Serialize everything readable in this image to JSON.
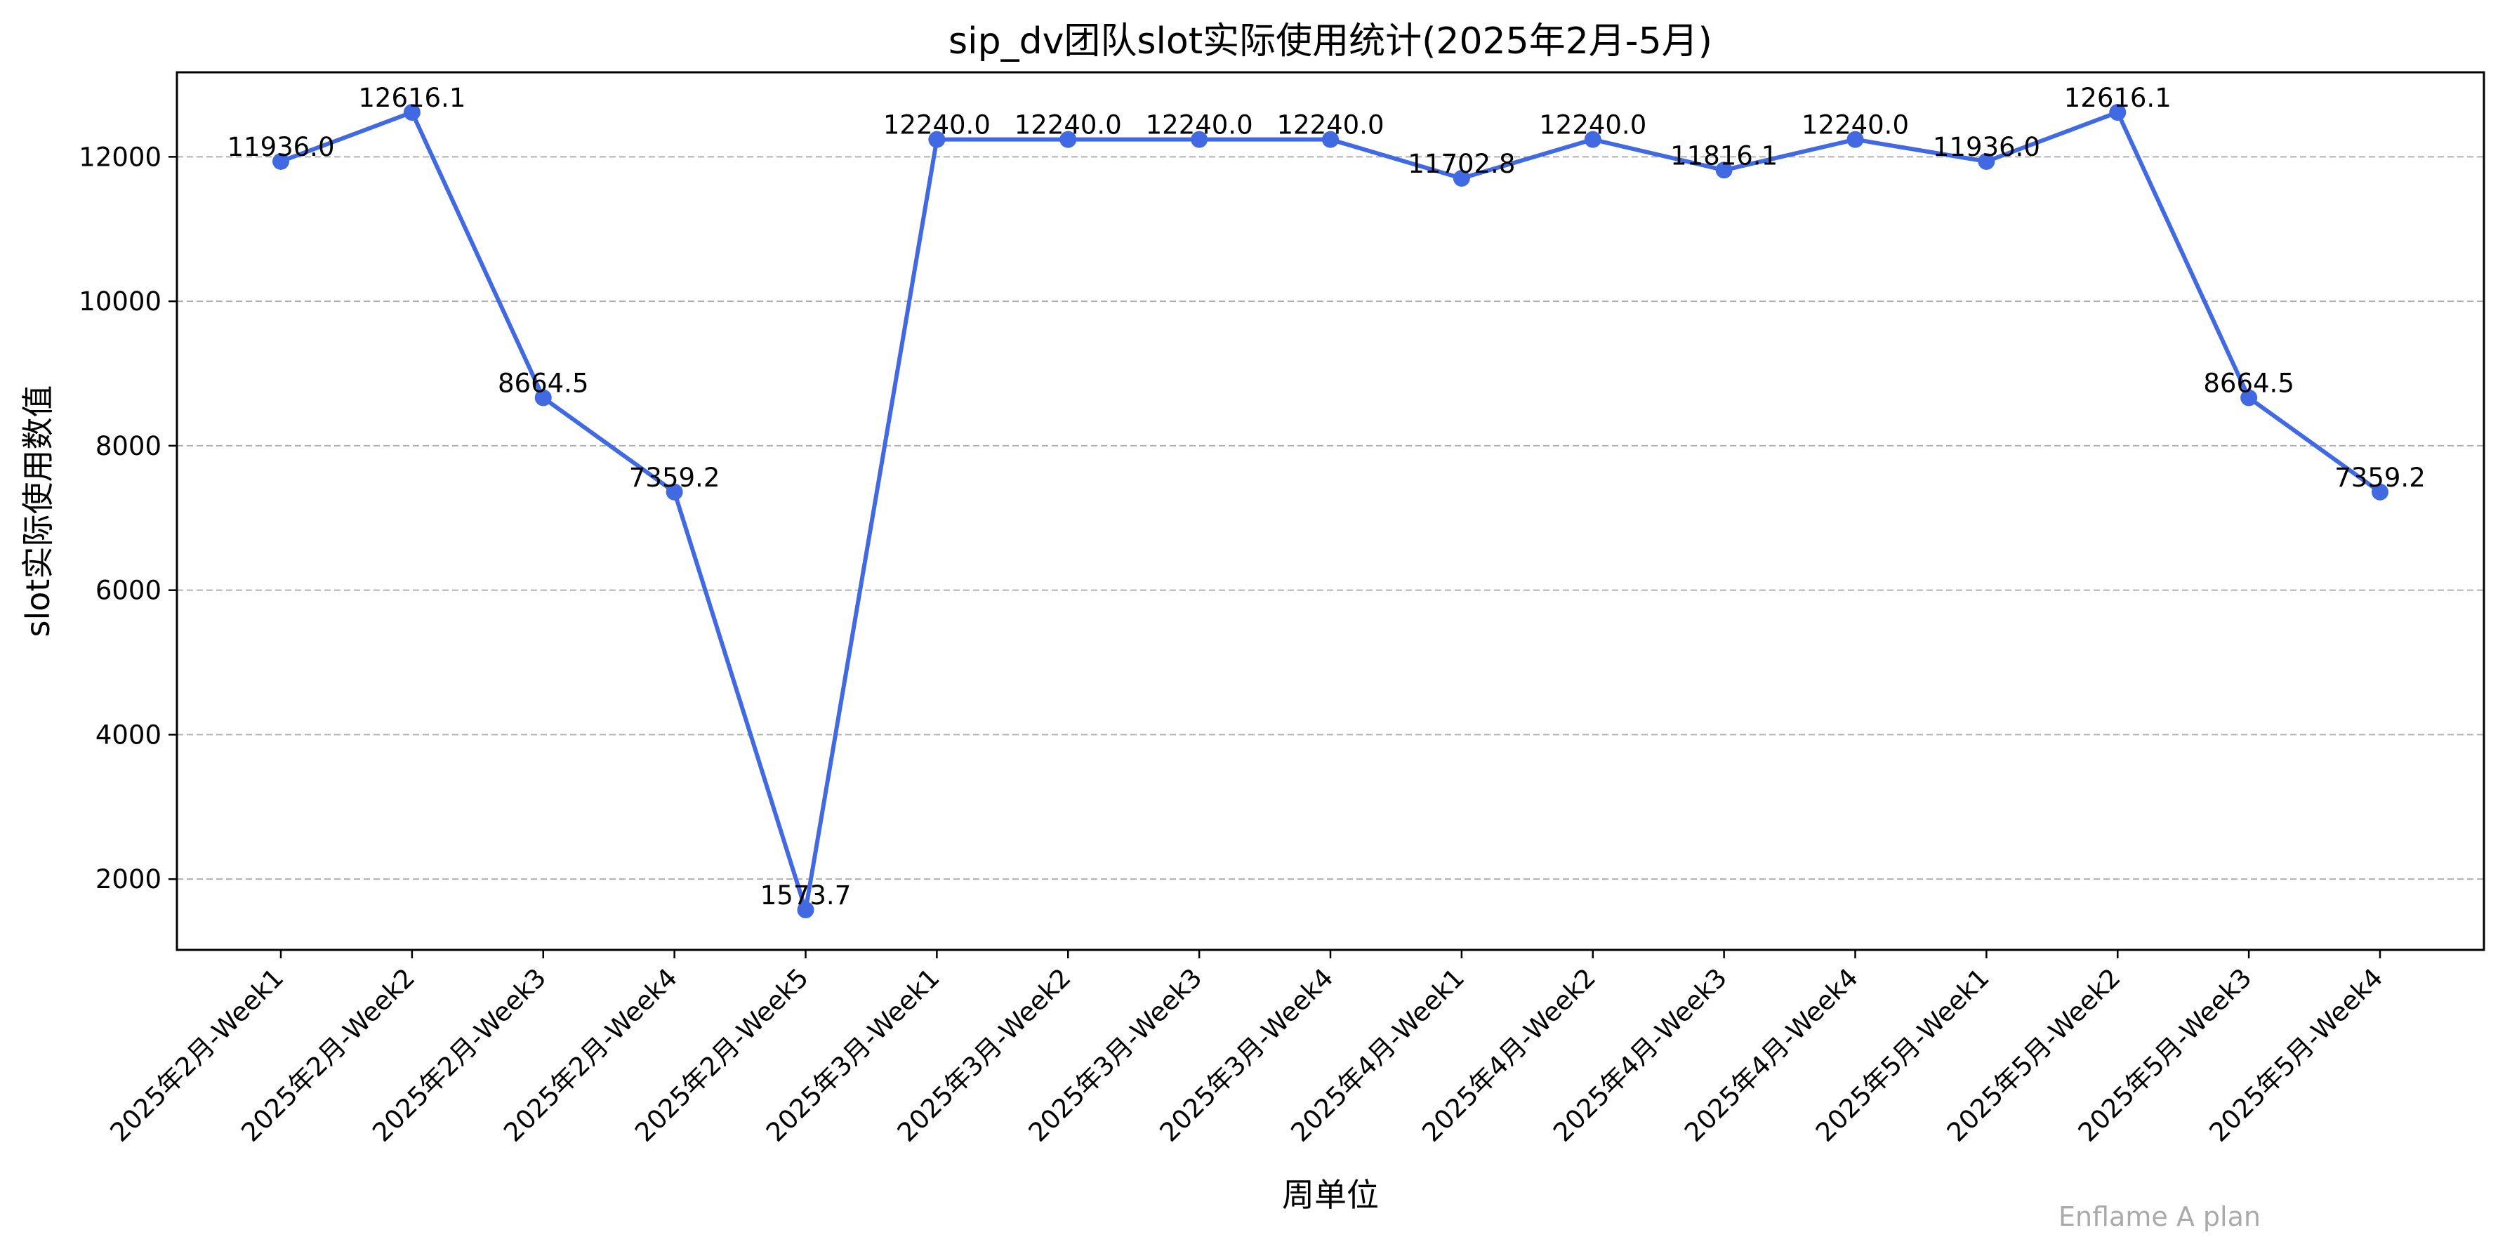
{
  "chart_data": {
    "type": "line",
    "title": "sip_dv团队slot实际使用统计(2025年2月-5月)",
    "xlabel": "周单位",
    "ylabel": "slot实际使用数值",
    "categories": [
      "2025年2月-Week1",
      "2025年2月-Week2",
      "2025年2月-Week3",
      "2025年2月-Week4",
      "2025年2月-Week5",
      "2025年3月-Week1",
      "2025年3月-Week2",
      "2025年3月-Week3",
      "2025年3月-Week4",
      "2025年4月-Week1",
      "2025年4月-Week2",
      "2025年4月-Week3",
      "2025年4月-Week4",
      "2025年5月-Week1",
      "2025年5月-Week2",
      "2025年5月-Week3",
      "2025年5月-Week4"
    ],
    "series": [
      {
        "values": [
          11936.0,
          12616.1,
          8664.5,
          7359.2,
          1573.7,
          12240.0,
          12240.0,
          12240.0,
          12240.0,
          11702.8,
          12240.0,
          11816.1,
          12240.0,
          11936.0,
          12616.1,
          8664.5,
          7359.2
        ],
        "data_labels": [
          "11936.0",
          "12616.1",
          "8664.5",
          "7359.2",
          "1573.7",
          "12240.0",
          "12240.0",
          "12240.0",
          "12240.0",
          "11702.8",
          "12240.0",
          "11816.1",
          "12240.0",
          "11936.0",
          "12616.1",
          "8664.5",
          "7359.2"
        ],
        "color": "#4169e1"
      }
    ],
    "yticks": [
      2000,
      4000,
      6000,
      8000,
      10000,
      12000
    ],
    "ytick_labels": [
      "2000",
      "4000",
      "6000",
      "8000",
      "10000",
      "12000"
    ],
    "ylim": [
      1020,
      13170
    ],
    "grid": "y-dashed",
    "grid_color": "#b0b0b0",
    "legend": "none",
    "watermark": "Enflame A plan"
  }
}
